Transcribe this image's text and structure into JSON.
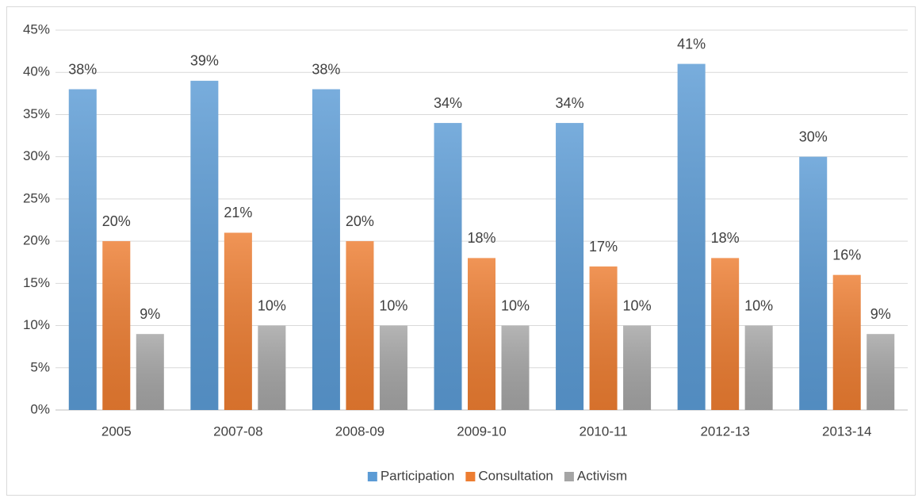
{
  "chart_data": {
    "type": "bar",
    "categories": [
      "2005",
      "2007-08",
      "2008-09",
      "2009-10",
      "2010-11",
      "2012-13",
      "2013-14"
    ],
    "series": [
      {
        "name": "Participation",
        "color": "#5b9bd5",
        "values": [
          38,
          39,
          38,
          34,
          34,
          41,
          30
        ],
        "value_labels": [
          "38%",
          "39%",
          "38%",
          "34%",
          "34%",
          "41%",
          "30%"
        ]
      },
      {
        "name": "Consultation",
        "color": "#ed7d31",
        "values": [
          20,
          21,
          20,
          18,
          17,
          18,
          16
        ],
        "value_labels": [
          "20%",
          "21%",
          "20%",
          "18%",
          "17%",
          "18%",
          "16%"
        ]
      },
      {
        "name": "Activism",
        "color": "#a5a5a5",
        "values": [
          9,
          10,
          10,
          10,
          10,
          10,
          9
        ],
        "value_labels": [
          "9%",
          "10%",
          "10%",
          "10%",
          "10%",
          "10%",
          "9%"
        ]
      }
    ],
    "ylim": [
      0,
      45
    ],
    "yticks": [
      {
        "value": 0,
        "label": "0%"
      },
      {
        "value": 5,
        "label": "5%"
      },
      {
        "value": 10,
        "label": "10%"
      },
      {
        "value": 15,
        "label": "15%"
      },
      {
        "value": 20,
        "label": "20%"
      },
      {
        "value": 25,
        "label": "25%"
      },
      {
        "value": 30,
        "label": "30%"
      },
      {
        "value": 35,
        "label": "35%"
      },
      {
        "value": 40,
        "label": "40%"
      },
      {
        "value": 45,
        "label": "45%"
      }
    ],
    "grid": true,
    "legend": "bottom"
  }
}
